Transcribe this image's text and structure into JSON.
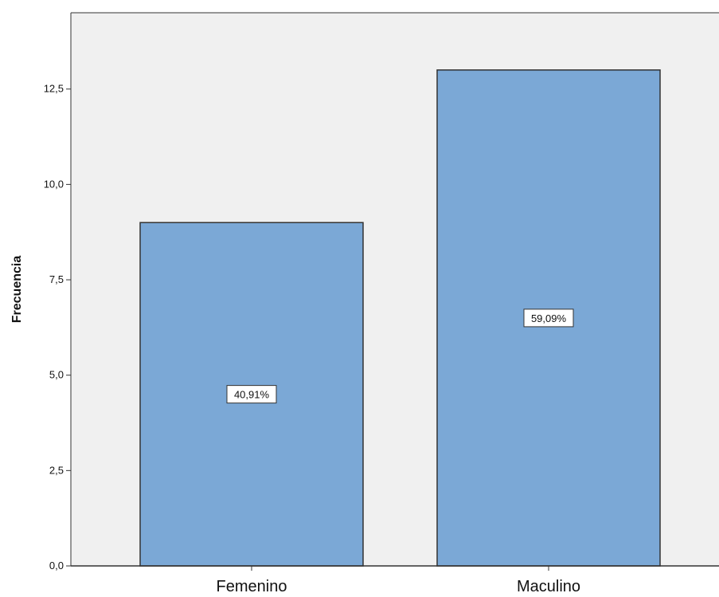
{
  "chart_data": {
    "type": "bar",
    "title": "",
    "xlabel": "",
    "ylabel": "Frecuencia",
    "ylim": [
      0,
      14.5
    ],
    "categories": [
      "Femenino",
      "Maculino"
    ],
    "values": [
      9,
      13
    ],
    "data_labels": [
      "40,91%",
      "59,09%"
    ],
    "yticks": [
      0,
      2.5,
      5,
      7.5,
      10,
      12.5
    ],
    "ytick_labels": [
      "0,0",
      "2,5",
      "5,0",
      "7,5",
      "10,0",
      "12,5"
    ],
    "grid": false,
    "legend": "none",
    "colors": {
      "bar_fill": "#7ba8d6",
      "bar_stroke": "#333333",
      "plot_background": "#f0f0f0",
      "axis": "#333333",
      "label_box": "#ffffff"
    }
  }
}
